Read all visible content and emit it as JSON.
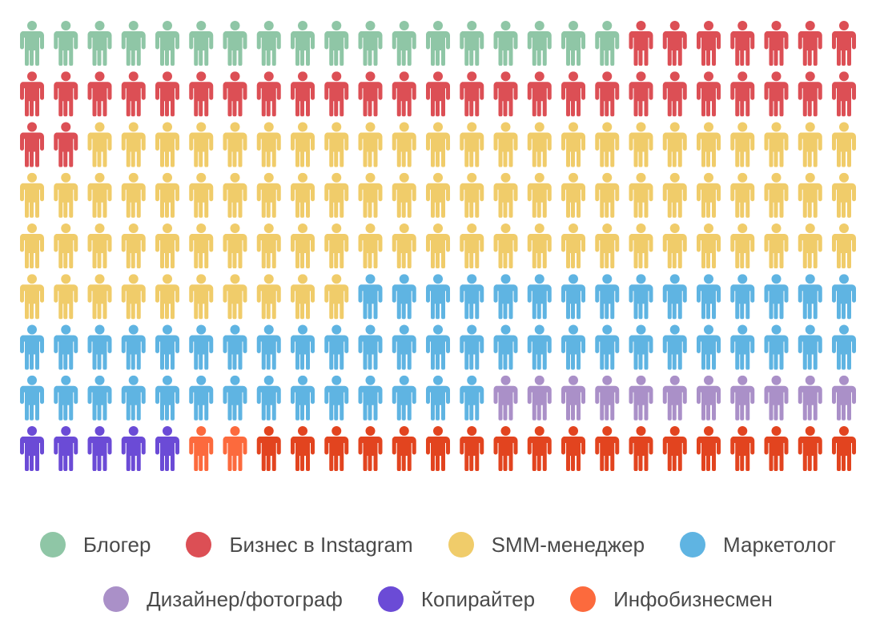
{
  "chart_data": {
    "type": "pictogram",
    "title": "",
    "grid": {
      "rows": 9,
      "columns": 25
    },
    "icon": "person-icon",
    "series": [
      {
        "name": "Блогер",
        "count": 18,
        "color": "#8fc6a6"
      },
      {
        "name": "Бизнес в Instagram",
        "count": 34,
        "color": "#dc4f55"
      },
      {
        "name": "SMM-менеджер",
        "count": 83,
        "color": "#f0cc6a"
      },
      {
        "name": "Маркетолог",
        "count": 54,
        "color": "#5fb4e2"
      },
      {
        "name": "Дизайнер/фотограф",
        "count": 11,
        "color": "#aa90c8"
      },
      {
        "name": "Копирайтер",
        "count": 5,
        "color": "#6b4bd6"
      },
      {
        "name": "Инфобизнесмен",
        "count": 2,
        "color": "#fc6a3d"
      },
      {
        "name": "",
        "count": 18,
        "color": "#e2441f"
      }
    ]
  },
  "legend": {
    "rows": [
      [
        {
          "label": "Блогер",
          "color": "#8fc6a6"
        },
        {
          "label": "Бизнес в Instagram",
          "color": "#dc4f55"
        },
        {
          "label": "SMM-менеджер",
          "color": "#f0cc6a"
        },
        {
          "label": "Маркетолог",
          "color": "#5fb4e2"
        }
      ],
      [
        {
          "label": "Дизайнер/фотограф",
          "color": "#aa90c8"
        },
        {
          "label": "Копирайтер",
          "color": "#6b4bd6"
        },
        {
          "label": "Инфобизнесмен",
          "color": "#fc6a3d"
        }
      ]
    ]
  }
}
